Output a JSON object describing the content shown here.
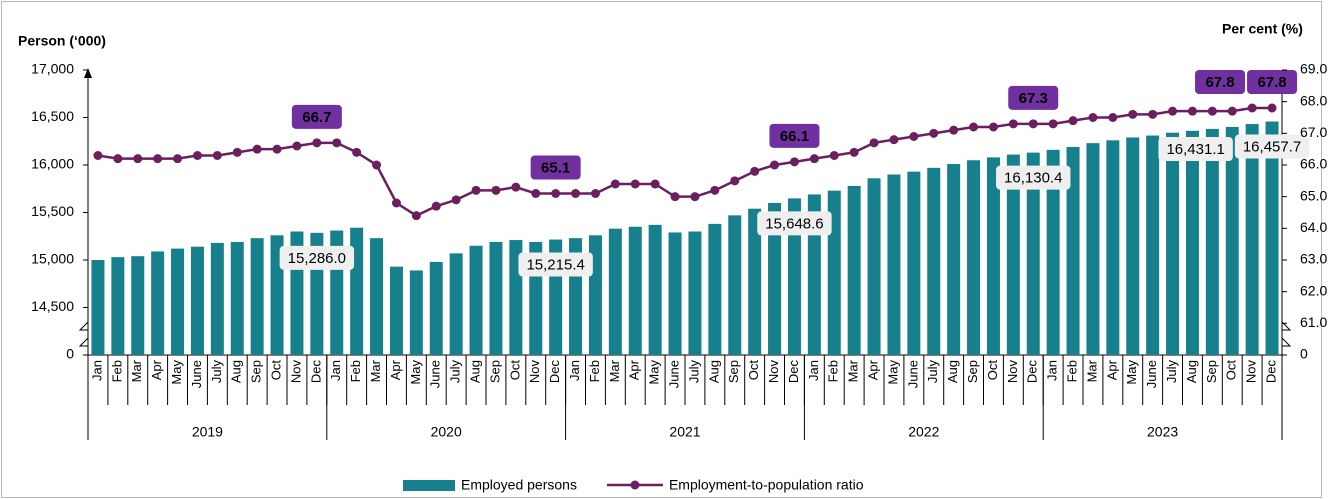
{
  "chart_data": {
    "type": "combo",
    "y_title": "Person (‘000)",
    "y2_title": "Per cent (%)",
    "categories": [
      "Jan",
      "Feb",
      "Mar",
      "Apr",
      "May",
      "June",
      "July",
      "Aug",
      "Sep",
      "Oct",
      "Nov",
      "Dec",
      "Jan",
      "Feb",
      "Mar",
      "Apr",
      "May",
      "June",
      "July",
      "Aug",
      "Sep",
      "Oct",
      "Nov",
      "Dec",
      "Jan",
      "Feb",
      "Mar",
      "Apr",
      "May",
      "June",
      "July",
      "Aug",
      "Sep",
      "Oct",
      "Nov",
      "Dec",
      "Jan",
      "Feb",
      "Mar",
      "Apr",
      "May",
      "June",
      "July",
      "Aug",
      "Sep",
      "Oct",
      "Nov",
      "Dec",
      "Jan",
      "Feb",
      "Mar",
      "Apr",
      "May",
      "June",
      "July",
      "Aug",
      "Sep",
      "Oct",
      "Nov",
      "Dec"
    ],
    "category_groups": [
      "2019",
      "2020",
      "2021",
      "2022",
      "2023"
    ],
    "series": [
      {
        "name": "Employed persons",
        "type": "bar",
        "color": "#17808d",
        "values": [
          15000,
          15030,
          15040,
          15090,
          15120,
          15140,
          15180,
          15190,
          15230,
          15260,
          15300,
          15286.0,
          15310,
          15340,
          15230,
          14930,
          14890,
          14980,
          15070,
          15150,
          15190,
          15210,
          15190,
          15215.4,
          15230,
          15260,
          15330,
          15350,
          15370,
          15290,
          15300,
          15380,
          15470,
          15540,
          15600,
          15648.6,
          15690,
          15730,
          15780,
          15860,
          15900,
          15930,
          15970,
          16010,
          16050,
          16080,
          16110,
          16130.4,
          16160,
          16190,
          16230,
          16260,
          16290,
          16310,
          16340,
          16360,
          16380,
          16400,
          16431.1,
          16457.7
        ],
        "value_labels": [
          null,
          null,
          null,
          null,
          null,
          null,
          null,
          null,
          null,
          null,
          null,
          "15,286.0",
          null,
          null,
          null,
          null,
          null,
          null,
          null,
          null,
          null,
          null,
          null,
          "15,215.4",
          null,
          null,
          null,
          null,
          null,
          null,
          null,
          null,
          null,
          null,
          null,
          "15,648.6",
          null,
          null,
          null,
          null,
          null,
          null,
          null,
          null,
          null,
          null,
          null,
          "16,130.4",
          null,
          null,
          null,
          null,
          null,
          null,
          null,
          null,
          null,
          null,
          "16,431.1",
          "16,457.7"
        ]
      },
      {
        "name": "Employment-to-population ratio",
        "type": "line",
        "axis": "y2",
        "color": "#6b1f5e",
        "label_color": "#7030a0",
        "values": [
          66.3,
          66.2,
          66.2,
          66.2,
          66.2,
          66.3,
          66.3,
          66.4,
          66.5,
          66.5,
          66.6,
          66.7,
          66.7,
          66.4,
          66.0,
          64.8,
          64.4,
          64.7,
          64.9,
          65.2,
          65.2,
          65.3,
          65.1,
          65.1,
          65.1,
          65.1,
          65.4,
          65.4,
          65.4,
          65.0,
          65.0,
          65.2,
          65.5,
          65.8,
          66.0,
          66.1,
          66.2,
          66.3,
          66.4,
          66.7,
          66.8,
          66.9,
          67.0,
          67.1,
          67.2,
          67.2,
          67.3,
          67.3,
          67.3,
          67.4,
          67.5,
          67.5,
          67.6,
          67.6,
          67.7,
          67.7,
          67.7,
          67.7,
          67.8,
          67.8
        ],
        "value_labels": [
          null,
          null,
          null,
          null,
          null,
          null,
          null,
          null,
          null,
          null,
          null,
          "66.7",
          null,
          null,
          null,
          null,
          null,
          null,
          null,
          null,
          null,
          null,
          null,
          "65.1",
          null,
          null,
          null,
          null,
          null,
          null,
          null,
          null,
          null,
          null,
          null,
          "66.1",
          null,
          null,
          null,
          null,
          null,
          null,
          null,
          null,
          null,
          null,
          null,
          "67.3",
          null,
          null,
          null,
          null,
          null,
          null,
          null,
          null,
          null,
          null,
          "67.8",
          "67.8"
        ]
      }
    ],
    "ylim": [
      0,
      17000
    ],
    "y_break": [
      0,
      14500
    ],
    "yticks": [
      0,
      {
        "value": 14500,
        "label": "14,500"
      },
      {
        "value": 15000,
        "label": "15,000"
      },
      {
        "value": 15500,
        "label": "15,500"
      },
      {
        "value": 16000,
        "label": "16,000"
      },
      {
        "value": 16500,
        "label": "16,500"
      },
      {
        "value": 17000,
        "label": "17,000"
      }
    ],
    "y2lim": [
      0,
      69
    ],
    "y2_break": [
      0,
      61
    ],
    "y2ticks": [
      0,
      {
        "value": 61,
        "label": "61.0"
      },
      {
        "value": 62,
        "label": "62.0"
      },
      {
        "value": 63,
        "label": "63.0"
      },
      {
        "value": 64,
        "label": "64.0"
      },
      {
        "value": 65,
        "label": "65.0"
      },
      {
        "value": 66,
        "label": "66.0"
      },
      {
        "value": 67,
        "label": "67.0"
      },
      {
        "value": 68,
        "label": "68.0"
      },
      {
        "value": 69,
        "label": "69.0"
      }
    ],
    "grid": false,
    "legend": "bottom"
  }
}
